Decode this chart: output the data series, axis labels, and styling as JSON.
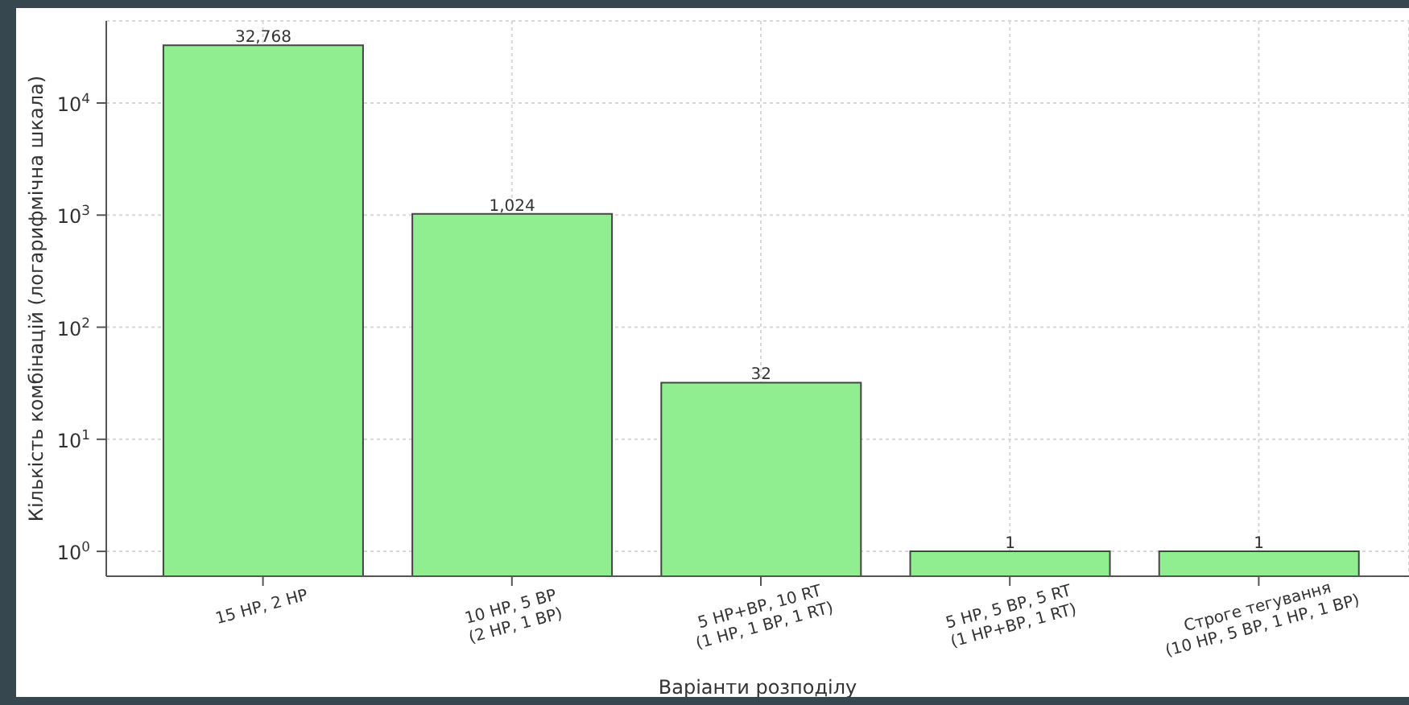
{
  "chart_data": {
    "type": "bar",
    "ylabel": "Кількість комбінацій (логарифмічна шкала)",
    "xlabel": "Варіанти розподілу",
    "categories": [
      "15 HP, 2 HP",
      "10 HP, 5 BP\n(2 HP, 1 BP)",
      "5 HP+BP, 10 RT\n(1 HP, 1 BP, 1 RT)",
      "5 HP, 5 BP, 5 RT\n(1 HP+BP, 1 RT)",
      "Строге тегування\n(10 HP, 5 BP, 1 HP, 1 BP)"
    ],
    "values": [
      32768,
      1024,
      32,
      1,
      1
    ],
    "value_labels": [
      "32,768",
      "1,024",
      "32",
      "1",
      "1"
    ],
    "color": "#90ee90",
    "log": true,
    "ylim": [
      0.6,
      54000
    ],
    "yticks": [
      {
        "value": 1,
        "label": "10$^{0}$"
      },
      {
        "value": 10,
        "label": "10$^{1}$"
      },
      {
        "value": 100,
        "label": "10$^{2}$"
      },
      {
        "value": 1000,
        "label": "10$^{3}$"
      },
      {
        "value": 10000,
        "label": "10$^{4}$"
      }
    ],
    "grid": true
  }
}
